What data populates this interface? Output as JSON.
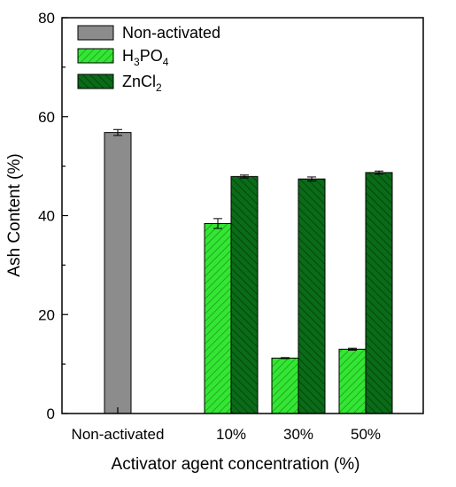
{
  "chart_data": {
    "type": "bar",
    "title": "",
    "xlabel": "Activator agent concentration (%)",
    "ylabel": "Ash Content (%)",
    "ylim": [
      0,
      80
    ],
    "yticks": [
      "0",
      "20",
      "40",
      "60",
      "80"
    ],
    "categories": [
      "Non-activated",
      "10%",
      "30%",
      "50%"
    ],
    "series": [
      {
        "name": "Non-activated",
        "color": "#8c8c8c",
        "pattern": "solid",
        "values": [
          56.8,
          null,
          null,
          null
        ],
        "errors": [
          0.6,
          null,
          null,
          null
        ]
      },
      {
        "name": "H3PO4",
        "label_main": "H",
        "label_sub1": "3",
        "label_mid": "PO",
        "label_sub2": "4",
        "color": "#33e633",
        "pattern": "hatch-light",
        "values": [
          null,
          38.4,
          11.2,
          13.0
        ],
        "errors": [
          null,
          1.0,
          0.1,
          0.2
        ]
      },
      {
        "name": "ZnCl2",
        "label_main": "ZnCl",
        "label_sub1": "2",
        "color": "#0a6b18",
        "pattern": "hatch-dark",
        "values": [
          null,
          47.9,
          47.4,
          48.7
        ],
        "errors": [
          null,
          0.3,
          0.4,
          0.3
        ]
      }
    ],
    "legend_position": "top-left",
    "grid": false,
    "error_bars": true
  }
}
